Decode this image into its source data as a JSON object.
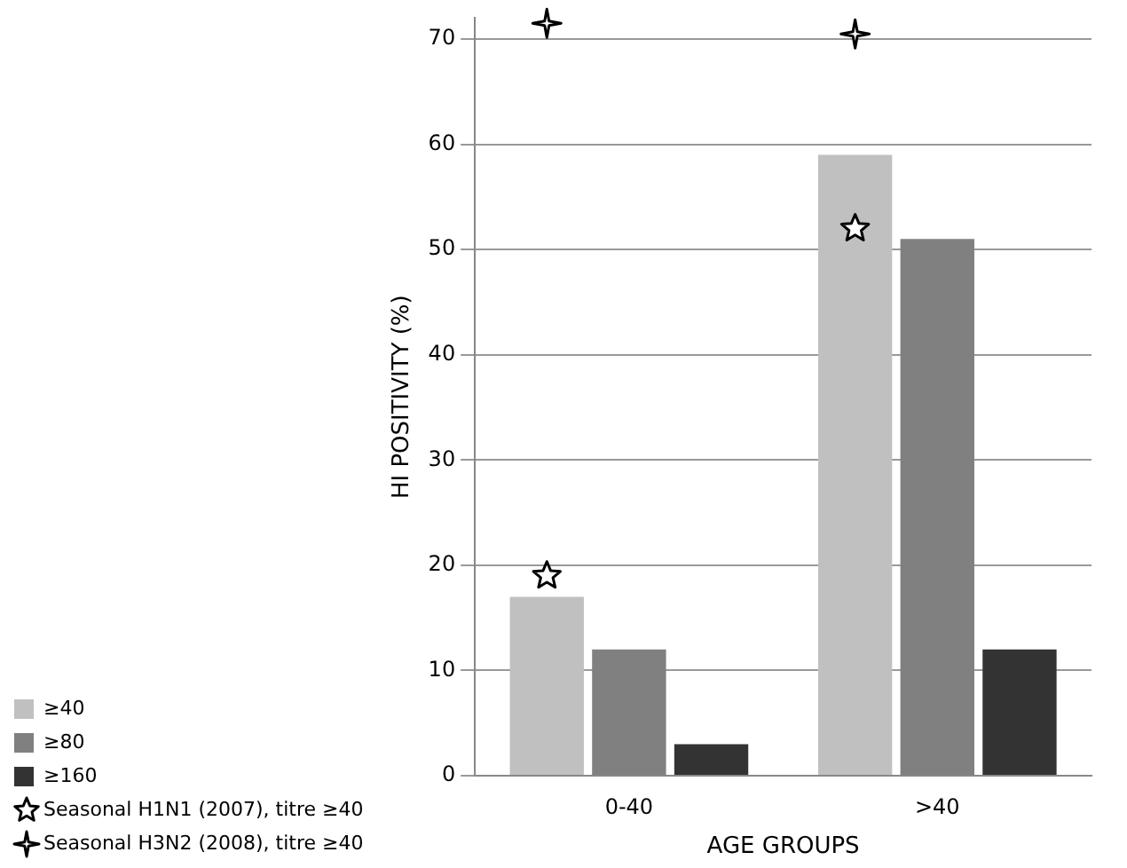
{
  "chart_data": {
    "type": "bar",
    "xlabel": "AGE GROUPS",
    "ylabel": "HI POSITIVITY (%)",
    "categories": [
      "0-40",
      ">40"
    ],
    "series": [
      {
        "name": "≥40",
        "color": "#c0c0c0",
        "values": [
          17,
          59
        ]
      },
      {
        "name": "≥80",
        "color": "#808080",
        "values": [
          12,
          51
        ]
      },
      {
        "name": "≥160",
        "color": "#333333",
        "values": [
          3,
          12
        ]
      },
      {
        "name": "Seasonal H1N1 (2007), titre ≥40",
        "type": "scatter",
        "marker": "star",
        "color": "#000000",
        "x": [
          "0-40",
          ">40"
        ],
        "values": [
          19,
          52
        ]
      },
      {
        "name": "Seasonal H3N2 (2008), titre ≥40",
        "type": "scatter",
        "marker": "cross",
        "color": "#000000",
        "x": [
          "0-40",
          ">40"
        ],
        "values": [
          71.5,
          70.5
        ]
      }
    ],
    "ylim": [
      0,
      72
    ],
    "yticks": [
      0,
      10,
      20,
      30,
      40,
      50,
      60,
      70
    ],
    "grid": "y",
    "legend": "left"
  }
}
